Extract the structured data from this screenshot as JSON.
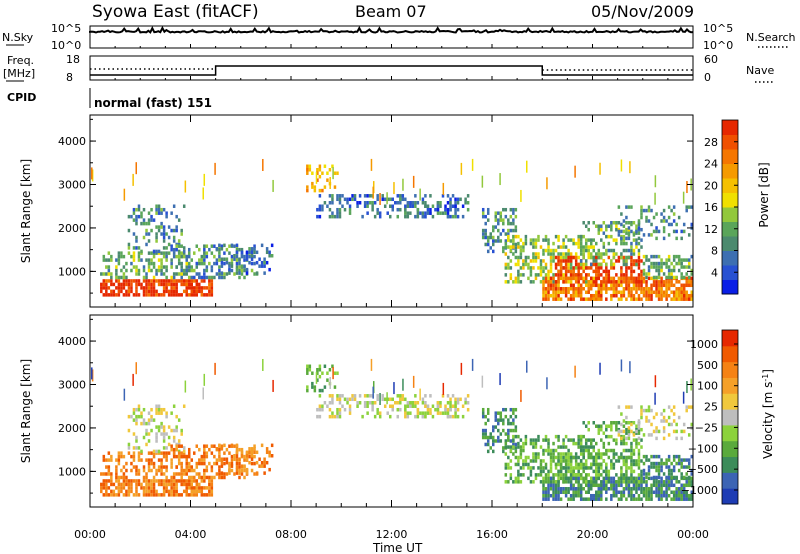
{
  "header": {
    "station": "Syowa East (fitACF)",
    "beam": "Beam 07",
    "date": "05/Nov/2009"
  },
  "strip_panels": {
    "nsky": {
      "left_label": "N.Sky",
      "right_label": "N.Search",
      "ticks": [
        "10^5",
        "10^0"
      ]
    },
    "freq": {
      "left_label_1": "Freq.",
      "left_label_2": "[MHz]",
      "left_ticks": [
        "18",
        "8"
      ],
      "right_label": "Nave",
      "right_ticks": [
        "60",
        "0"
      ],
      "freq_step_hours": [
        5.0,
        18.0
      ]
    },
    "cpid": {
      "label": "CPID",
      "value": "normal (fast) 151"
    }
  },
  "chart_data": [
    {
      "type": "heatmap",
      "quantity": "power",
      "ylabel": "Slant Range [km]",
      "ylim": [
        180,
        4600
      ],
      "yticks": [
        1000,
        2000,
        3000,
        4000
      ],
      "colorbar": {
        "label": "Power [dB]",
        "ticks": [
          "28",
          "24",
          "20",
          "16",
          "12",
          "8",
          "4"
        ],
        "range": [
          0,
          32
        ],
        "colors": [
          "#0a1ee6",
          "#2851d2",
          "#3d6fb1",
          "#4b8a6e",
          "#5aa55a",
          "#92c83c",
          "#f0e000",
          "#f5c000",
          "#f59a00",
          "#f57600",
          "#f05000",
          "#e62800"
        ]
      }
    },
    {
      "type": "heatmap",
      "quantity": "velocity",
      "ylabel": "Slant Range [km]",
      "ylim": [
        180,
        4600
      ],
      "yticks": [
        1000,
        2000,
        3000,
        4000
      ],
      "colorbar": {
        "label": "Velocity [m s^-1]",
        "ticks": [
          "1000",
          "500",
          "100",
          "25",
          "−25",
          "−100",
          "−500",
          "−1000"
        ],
        "colors": [
          "#1e3cb4",
          "#3c64b4",
          "#3c8c5a",
          "#5aaa3c",
          "#8cd23c",
          "#bebebe",
          "#f0c83c",
          "#f5a028",
          "#f58214",
          "#f05a00",
          "#e62800"
        ]
      }
    }
  ],
  "xaxis": {
    "label": "Time UT",
    "ticks": [
      "00:00",
      "04:00",
      "08:00",
      "12:00",
      "16:00",
      "20:00",
      "00:00"
    ],
    "range_hours": [
      0,
      24
    ]
  },
  "colors": {
    "axis": "#000000",
    "background": "#ffffff"
  }
}
